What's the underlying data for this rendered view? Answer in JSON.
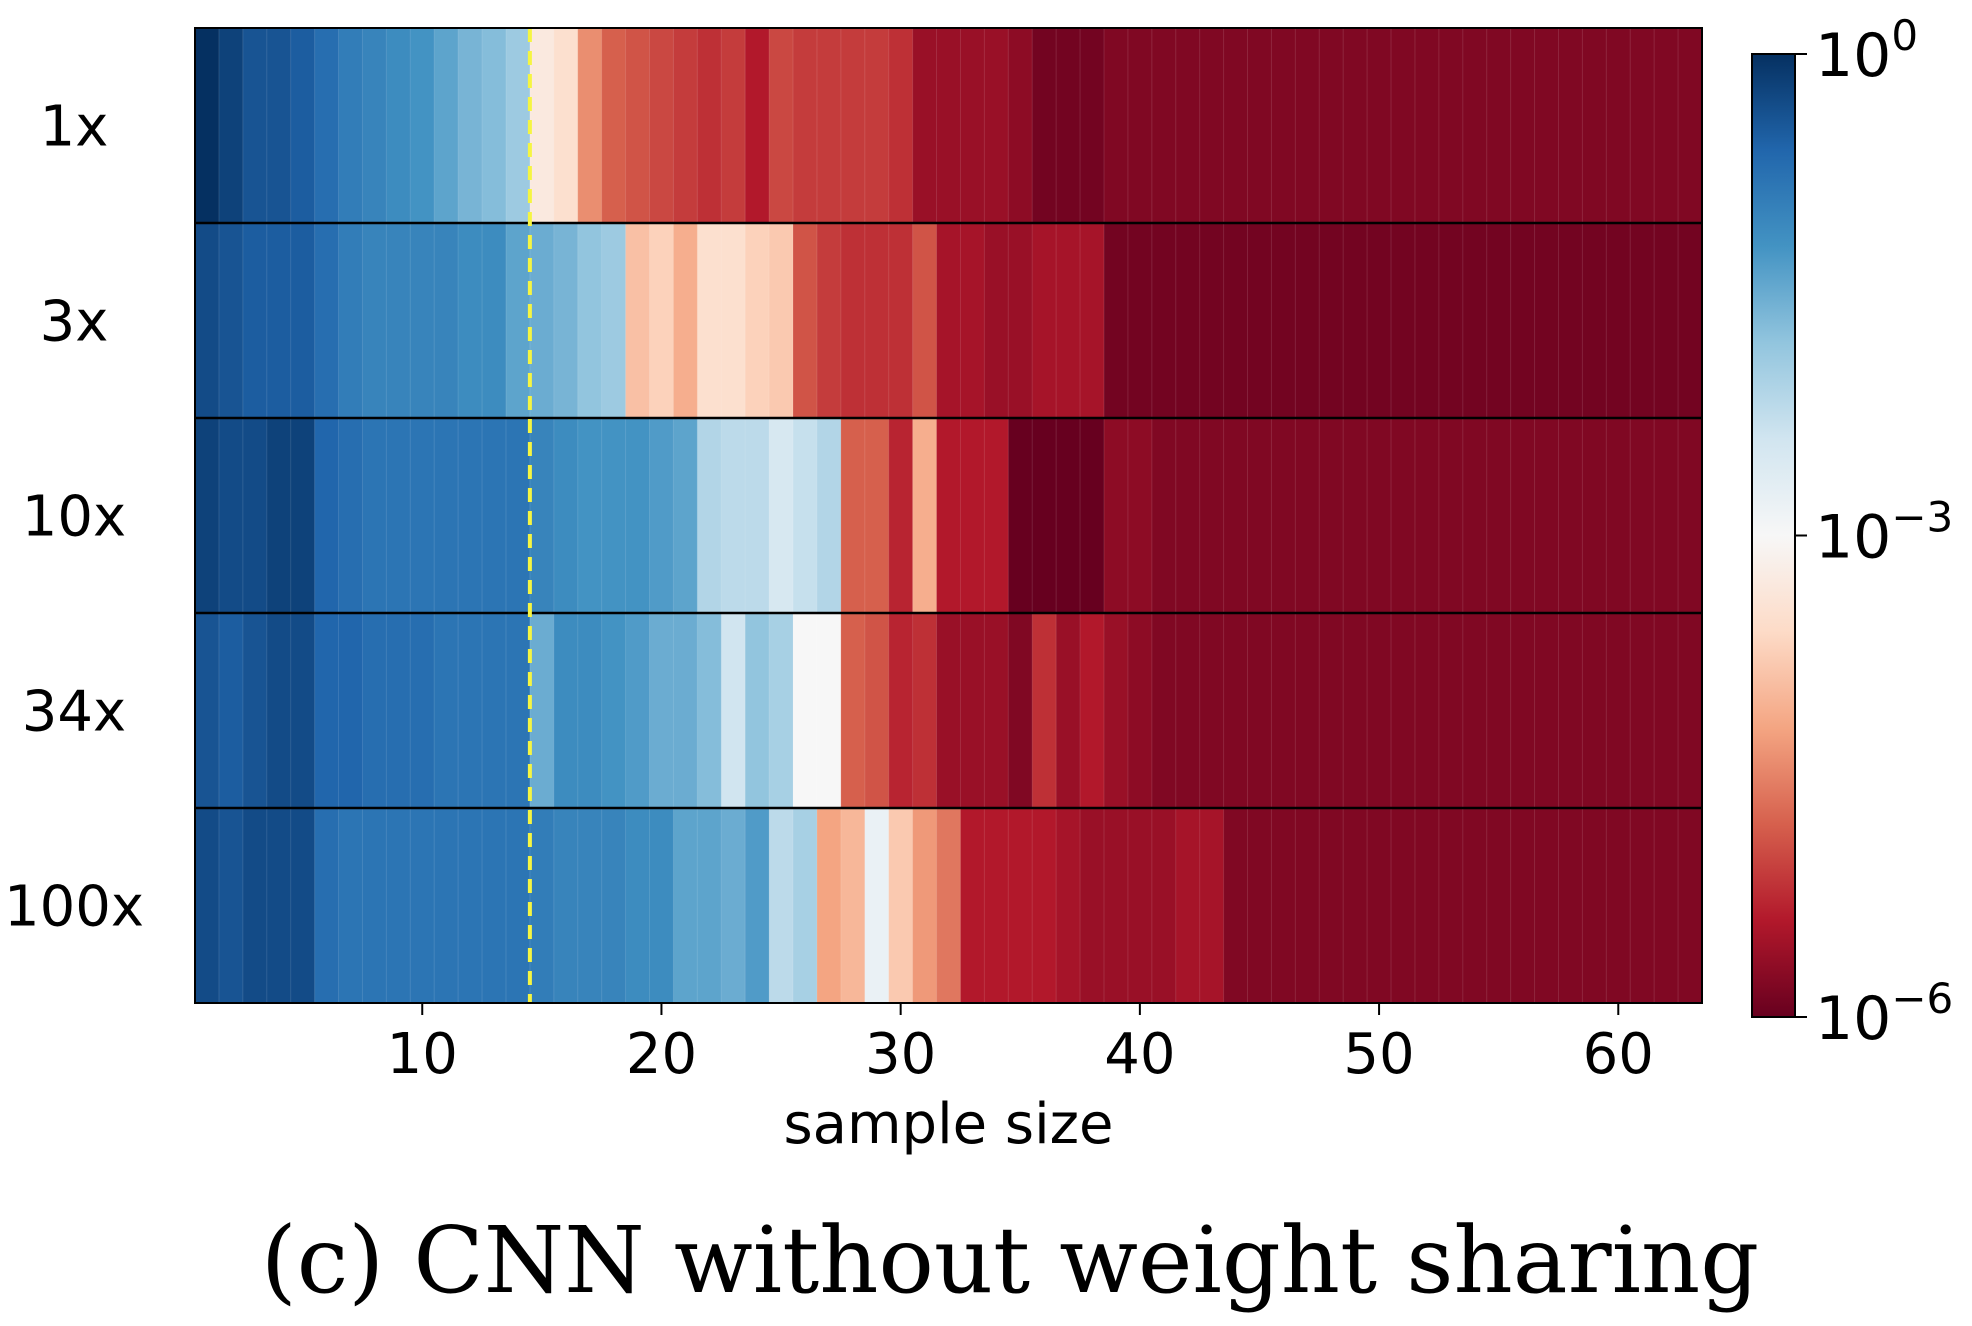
{
  "chart_data": {
    "type": "heatmap",
    "title": "(c) CNN without weight sharing",
    "xlabel": "sample size",
    "ylabel": "",
    "rows": [
      "1x",
      "3x",
      "10x",
      "34x",
      "100x"
    ],
    "x": [
      1,
      2,
      3,
      4,
      5,
      6,
      7,
      8,
      9,
      10,
      11,
      12,
      13,
      14,
      15,
      16,
      17,
      18,
      19,
      20,
      21,
      22,
      23,
      24,
      25,
      26,
      27,
      28,
      29,
      30,
      31,
      32,
      33,
      34,
      35,
      36,
      37,
      38,
      39,
      40,
      41,
      42,
      43,
      44,
      45,
      46,
      47,
      48,
      49,
      50,
      51,
      52,
      53,
      54,
      55,
      56,
      57,
      58,
      59,
      60,
      61,
      62,
      63
    ],
    "xlim": [
      0.5,
      63.5
    ],
    "xticks": [
      10,
      20,
      30,
      40,
      50,
      60
    ],
    "xtick_labels": [
      "10",
      "20",
      "30",
      "40",
      "50",
      "60"
    ],
    "marker_x": 14.5,
    "marker_color": "#f5f542",
    "colorscale": "RdBu",
    "color_scale_type": "log",
    "color_range": [
      1e-06,
      1
    ],
    "colorbar_ticks": [
      {
        "value": 1,
        "base": "10",
        "exp": "0"
      },
      {
        "value": 0.001,
        "base": "10",
        "exp": "−3"
      },
      {
        "value": 1e-06,
        "base": "10",
        "exp": "−6"
      }
    ],
    "values_log10": [
      [
        0,
        -0.2,
        -0.4,
        -0.4,
        -0.5,
        -0.7,
        -0.9,
        -1.0,
        -1.1,
        -1.2,
        -1.4,
        -1.6,
        -1.7,
        -1.9,
        -3.3,
        -3.5,
        -4.4,
        -4.8,
        -4.9,
        -5.0,
        -5.1,
        -5.2,
        -5.1,
        -5.4,
        -5.0,
        -5.1,
        -5.1,
        -5.1,
        -5.1,
        -5.2,
        -5.6,
        -5.6,
        -5.6,
        -5.6,
        -5.7,
        -5.9,
        -5.9,
        -5.9,
        -5.8,
        -5.8,
        -5.8,
        -5.8,
        -5.8,
        -5.8,
        -5.8,
        -5.8,
        -5.8,
        -5.8,
        -5.8,
        -5.8,
        -5.8,
        -5.8,
        -5.8,
        -5.8,
        -5.8,
        -5.8,
        -5.8,
        -5.8,
        -5.8,
        -5.8,
        -5.8,
        -5.8,
        -5.8
      ],
      [
        -0.3,
        -0.4,
        -0.5,
        -0.5,
        -0.5,
        -0.7,
        -0.9,
        -1.0,
        -1.0,
        -1.0,
        -1.0,
        -1.1,
        -1.1,
        -1.4,
        -1.5,
        -1.6,
        -1.8,
        -1.9,
        -3.9,
        -3.7,
        -4.1,
        -3.5,
        -3.5,
        -3.7,
        -3.8,
        -4.9,
        -5.1,
        -5.2,
        -5.2,
        -5.2,
        -4.9,
        -5.5,
        -5.5,
        -5.6,
        -5.6,
        -5.5,
        -5.5,
        -5.5,
        -5.9,
        -5.9,
        -5.9,
        -5.9,
        -5.9,
        -5.9,
        -5.9,
        -5.9,
        -5.9,
        -5.9,
        -5.9,
        -5.9,
        -5.9,
        -5.9,
        -5.9,
        -5.9,
        -5.9,
        -5.9,
        -5.9,
        -5.9,
        -5.9,
        -5.9,
        -5.9,
        -5.9,
        -5.9
      ],
      [
        -0.2,
        -0.3,
        -0.3,
        -0.2,
        -0.2,
        -0.6,
        -0.7,
        -0.8,
        -0.8,
        -0.8,
        -0.8,
        -0.8,
        -0.8,
        -0.8,
        -1.0,
        -1.1,
        -1.2,
        -1.2,
        -1.2,
        -1.3,
        -1.4,
        -2.1,
        -2.2,
        -2.2,
        -2.5,
        -2.3,
        -2.1,
        -4.8,
        -4.8,
        -5.3,
        -4.1,
        -5.4,
        -5.4,
        -5.4,
        -6.0,
        -6.0,
        -6.0,
        -6.0,
        -5.7,
        -5.7,
        -5.8,
        -5.8,
        -5.8,
        -5.8,
        -5.8,
        -5.8,
        -5.8,
        -5.8,
        -5.8,
        -5.8,
        -5.8,
        -5.8,
        -5.8,
        -5.8,
        -5.8,
        -5.8,
        -5.8,
        -5.8,
        -5.8,
        -5.8,
        -5.8,
        -5.8,
        -5.8
      ],
      [
        -0.4,
        -0.5,
        -0.4,
        -0.3,
        -0.3,
        -0.6,
        -0.6,
        -0.7,
        -0.7,
        -0.7,
        -0.8,
        -0.8,
        -0.8,
        -0.8,
        -1.5,
        -1.1,
        -1.1,
        -1.2,
        -1.3,
        -1.5,
        -1.5,
        -1.7,
        -2.4,
        -1.8,
        -2.0,
        -3.0,
        -3.0,
        -4.8,
        -4.9,
        -5.3,
        -5.2,
        -5.6,
        -5.6,
        -5.6,
        -5.8,
        -5.2,
        -5.6,
        -5.4,
        -5.6,
        -5.7,
        -5.8,
        -5.8,
        -5.8,
        -5.8,
        -5.8,
        -5.8,
        -5.8,
        -5.8,
        -5.8,
        -5.8,
        -5.8,
        -5.8,
        -5.8,
        -5.8,
        -5.8,
        -5.8,
        -5.8,
        -5.8,
        -5.8,
        -5.8,
        -5.8,
        -5.8,
        -5.8
      ],
      [
        -0.3,
        -0.4,
        -0.3,
        -0.3,
        -0.3,
        -0.7,
        -0.8,
        -0.8,
        -0.8,
        -0.8,
        -0.8,
        -0.8,
        -0.8,
        -0.8,
        -0.9,
        -1.0,
        -1.0,
        -1.0,
        -1.1,
        -1.1,
        -1.4,
        -1.4,
        -1.5,
        -1.3,
        -2.2,
        -2.0,
        -4.2,
        -4.0,
        -2.8,
        -3.8,
        -4.3,
        -4.6,
        -5.4,
        -5.4,
        -5.4,
        -5.4,
        -5.5,
        -5.6,
        -5.6,
        -5.6,
        -5.6,
        -5.5,
        -5.5,
        -5.8,
        -5.8,
        -5.8,
        -5.8,
        -5.8,
        -5.8,
        -5.8,
        -5.8,
        -5.8,
        -5.8,
        -5.8,
        -5.8,
        -5.8,
        -5.8,
        -5.8,
        -5.8,
        -5.8,
        -5.8,
        -5.8,
        -5.8
      ]
    ]
  }
}
